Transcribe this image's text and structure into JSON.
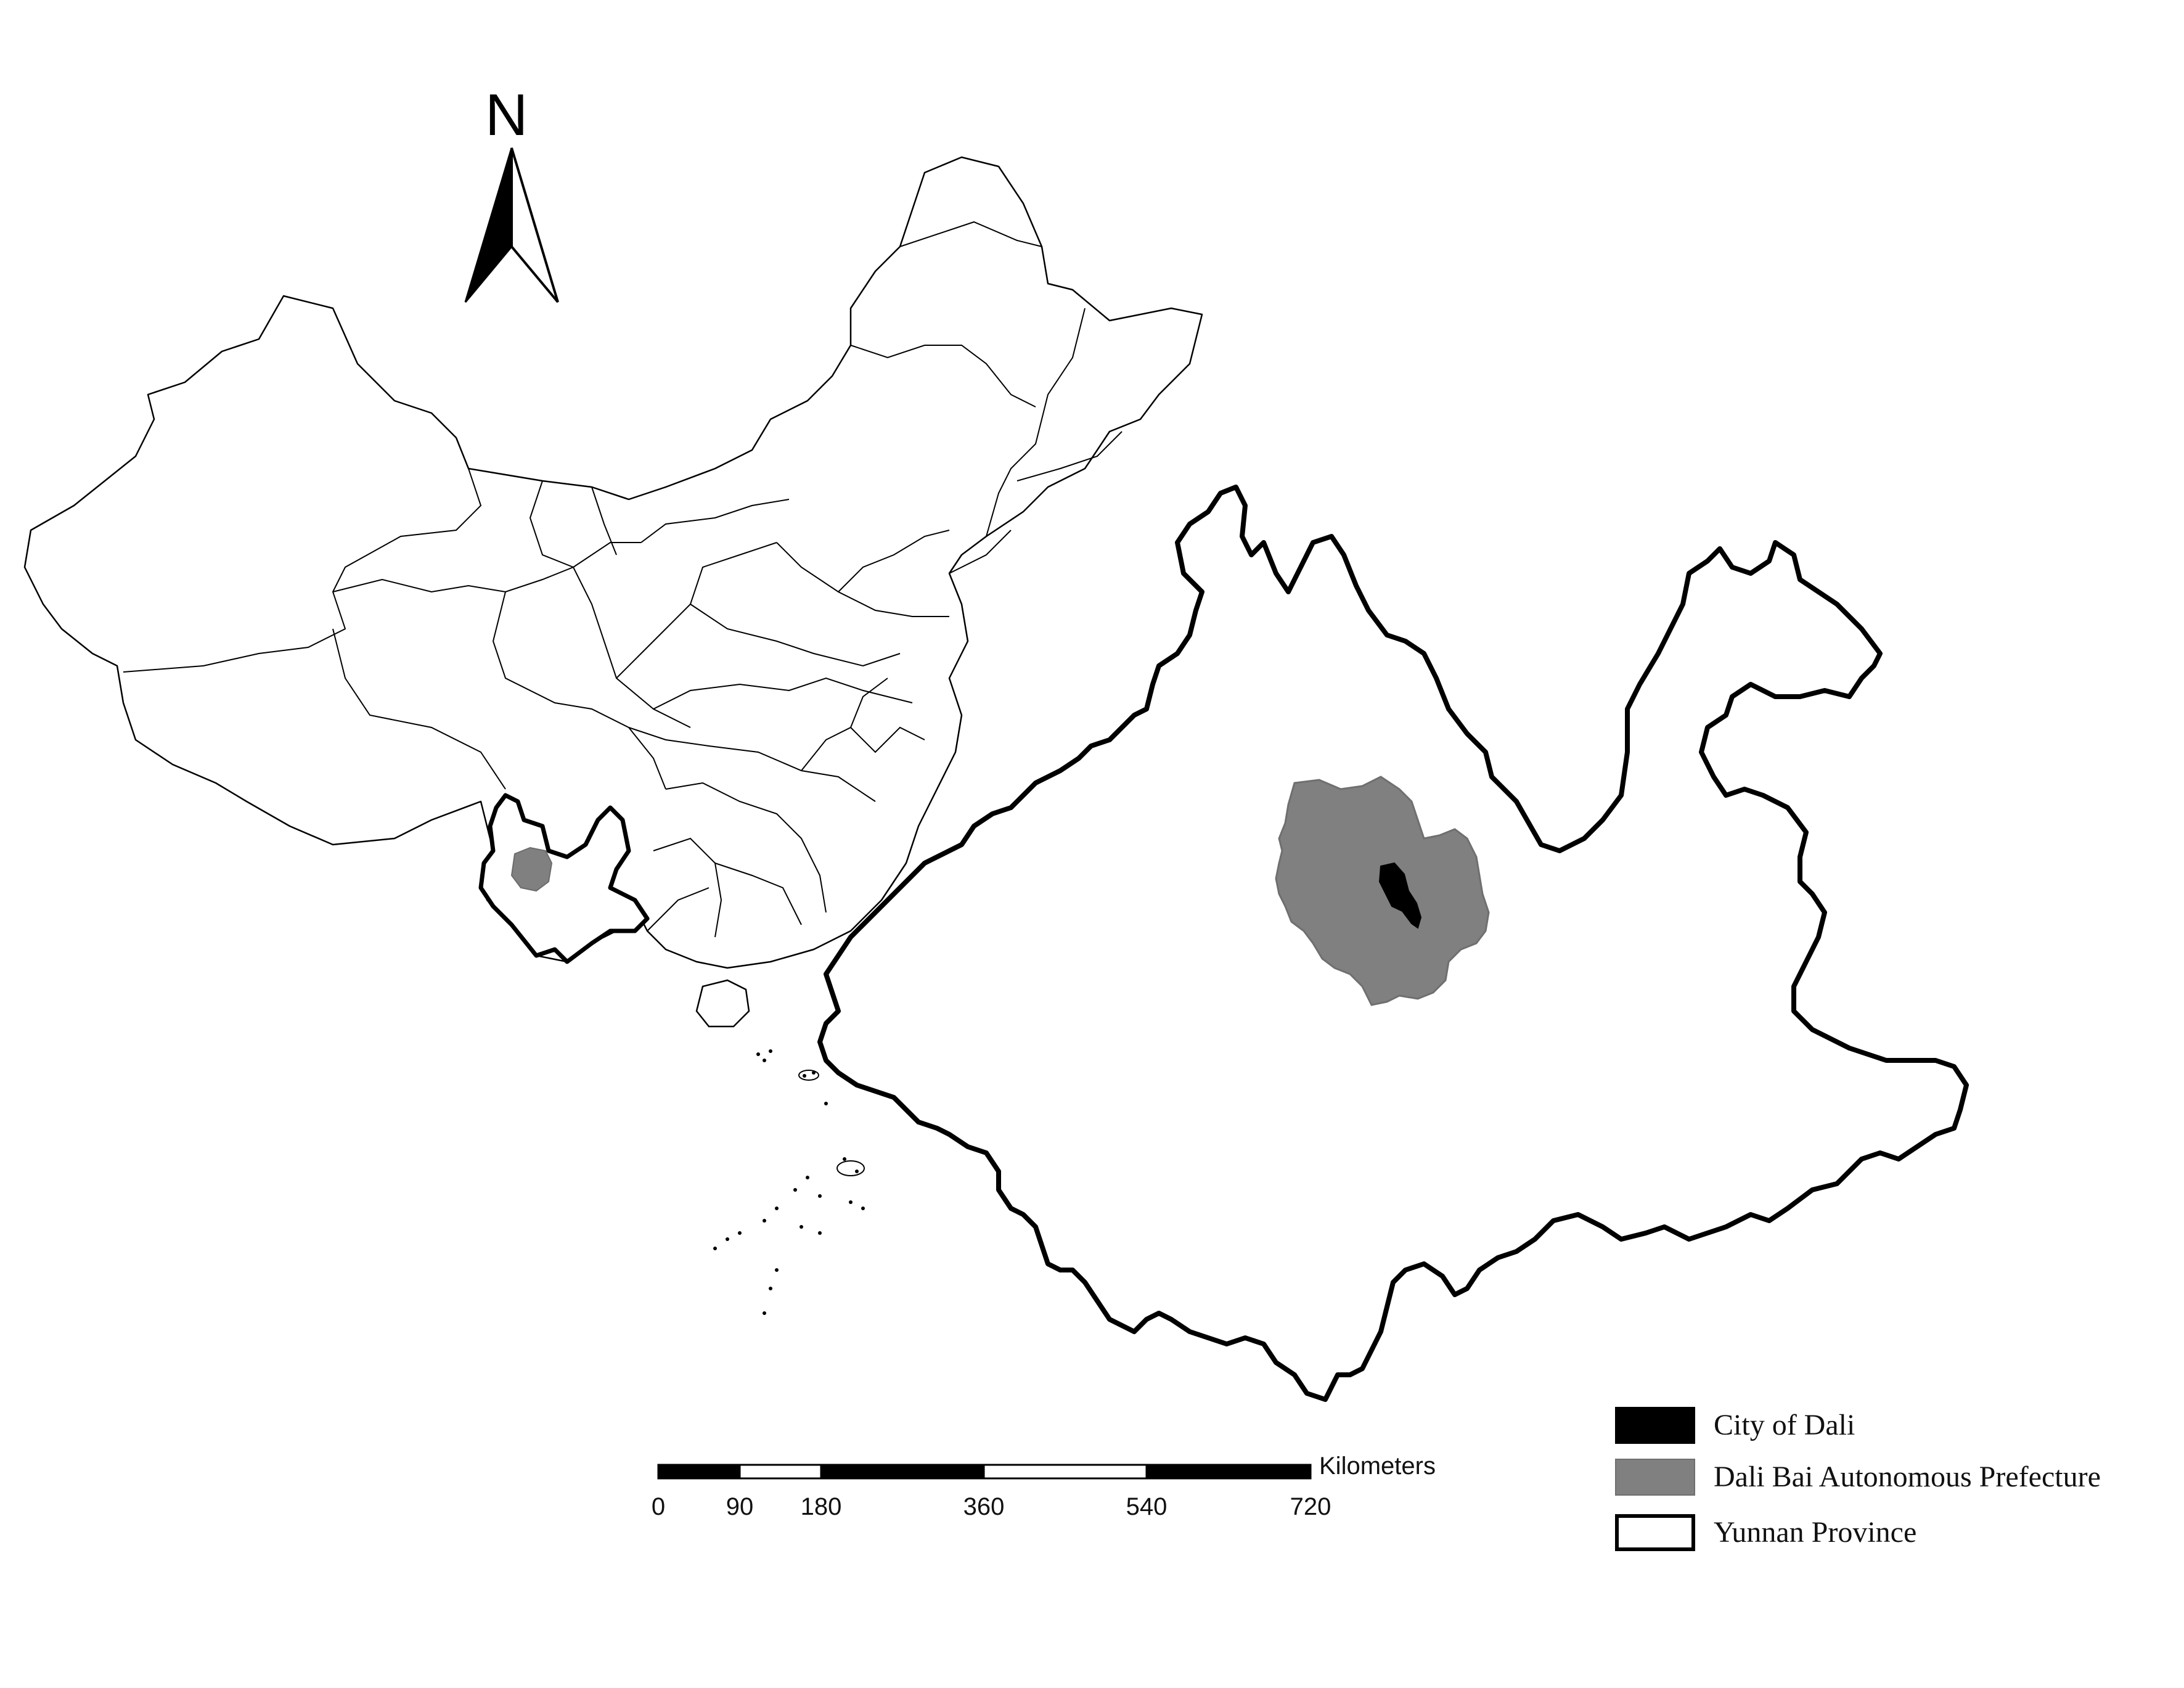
{
  "north_arrow": {
    "label": "N"
  },
  "scale_bar": {
    "unit": "Kilometers",
    "ticks": [
      "0",
      "90",
      "180",
      "360",
      "540",
      "720"
    ]
  },
  "legend": {
    "items": [
      {
        "label": "City of Dali",
        "color": "#000000"
      },
      {
        "label": "Dali Bai Autonomous Prefecture",
        "color": "#808080"
      },
      {
        "label": "Yunnan Province",
        "color": "#ffffff"
      }
    ]
  },
  "colors": {
    "boundary": "#000000",
    "prefecture": "#808080",
    "city": "#000000",
    "background": "#ffffff"
  }
}
